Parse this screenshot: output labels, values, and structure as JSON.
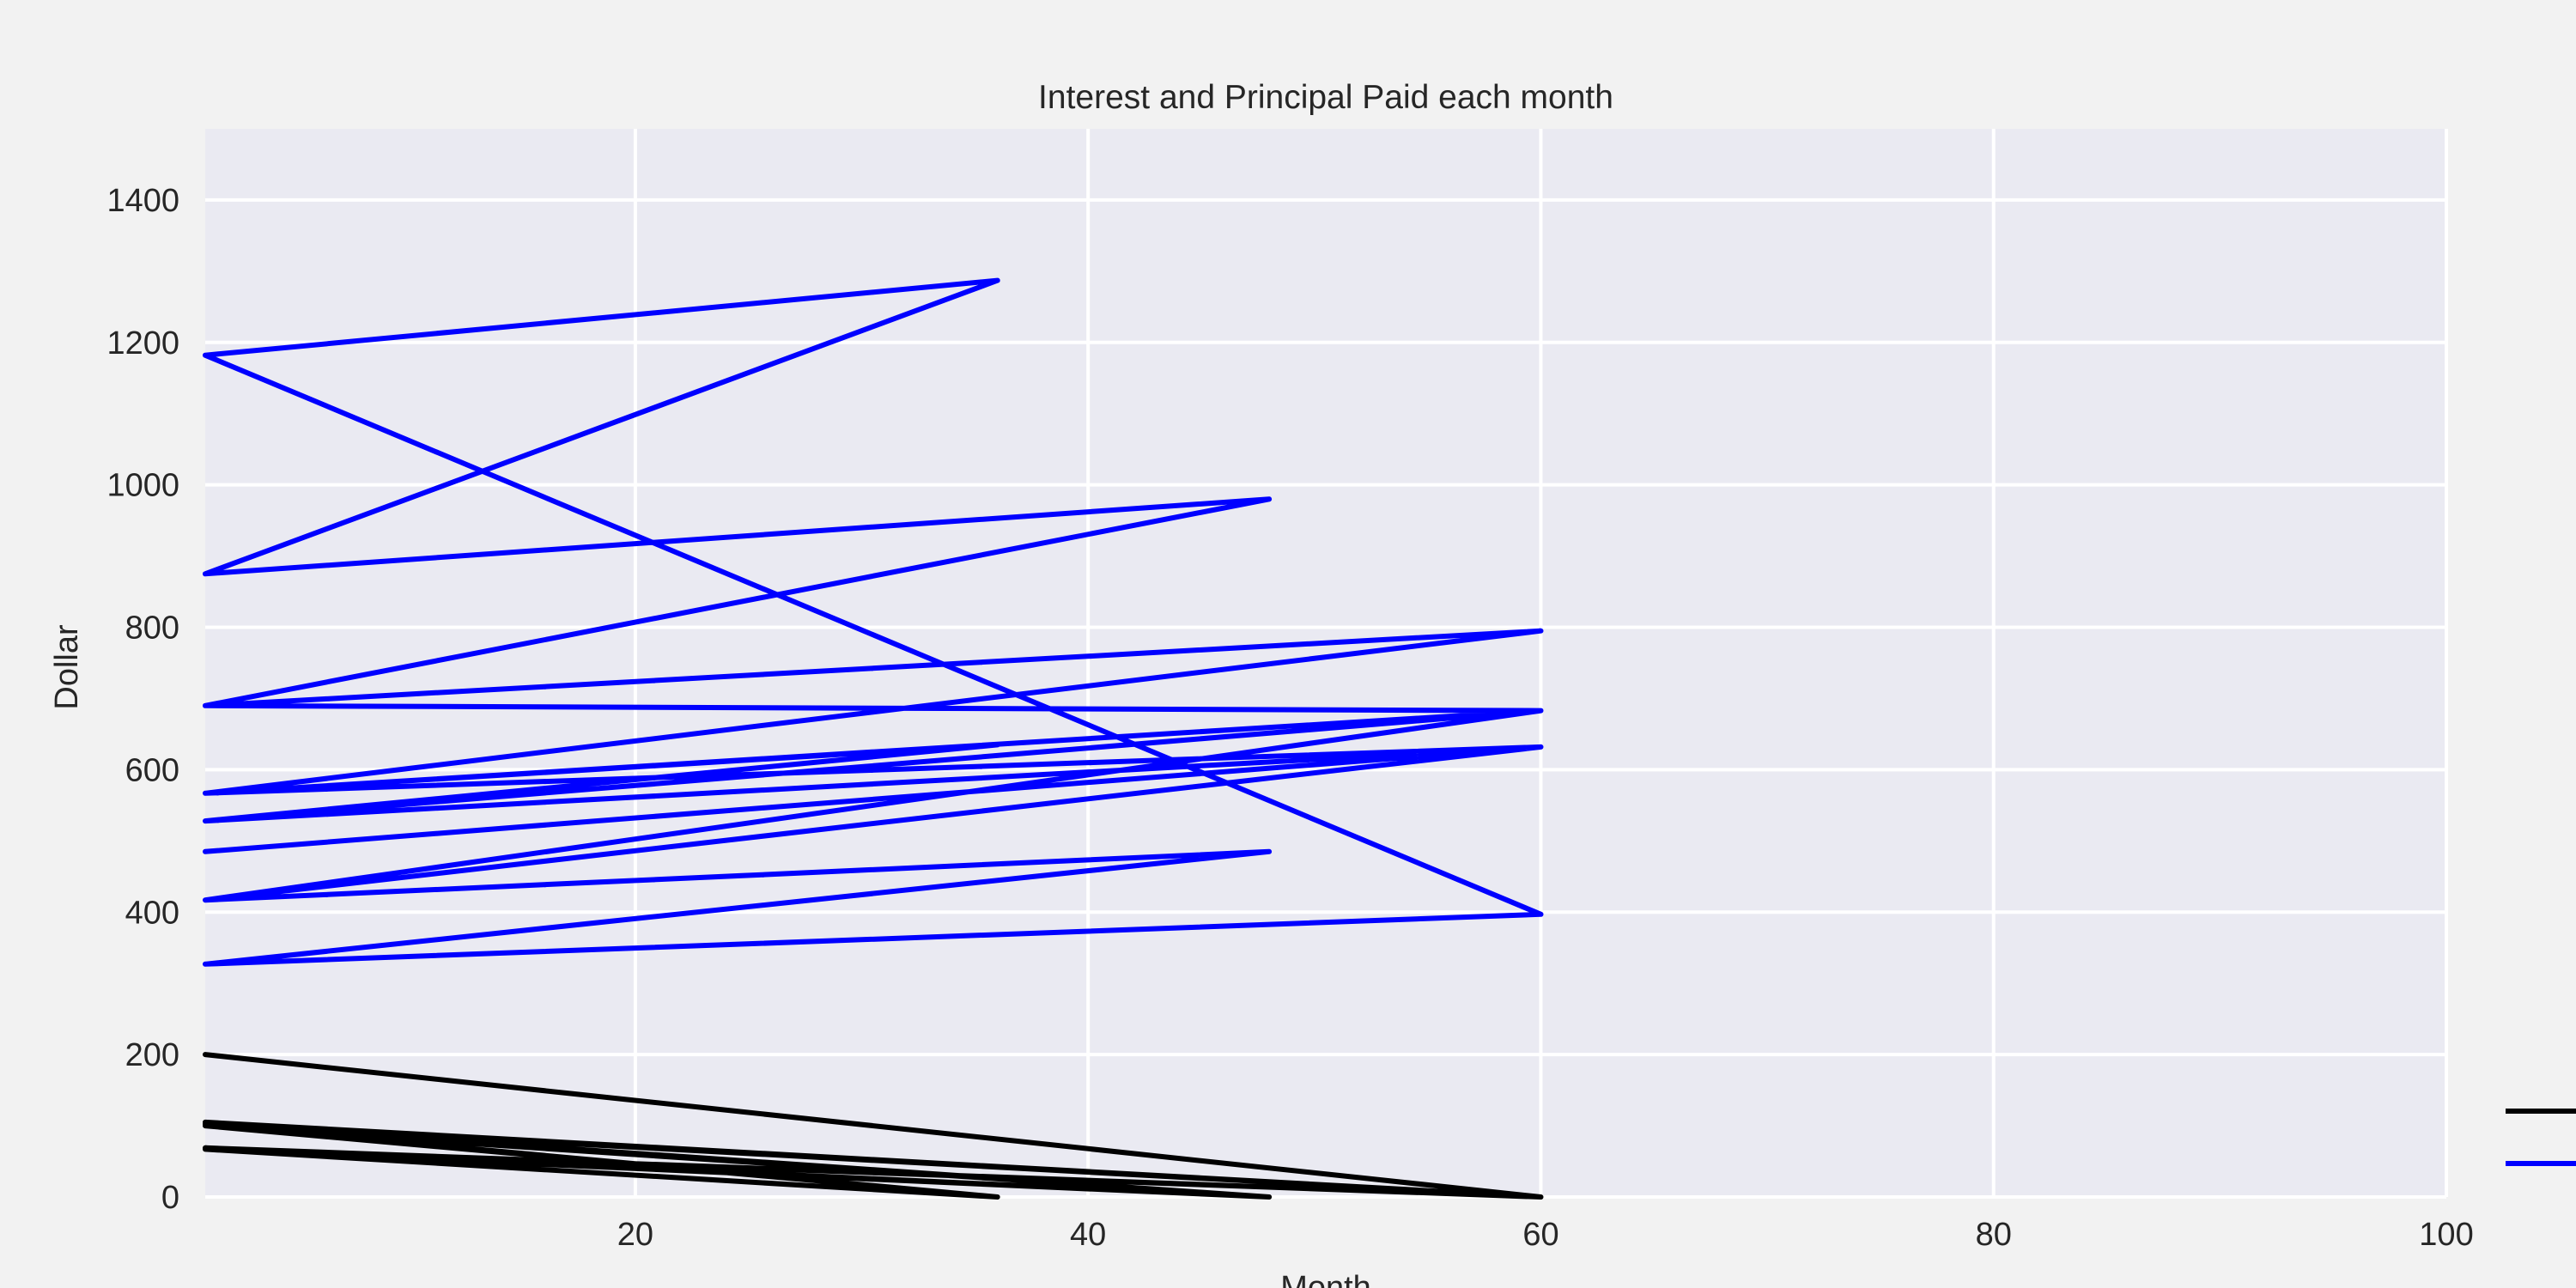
{
  "chart_data": {
    "type": "line",
    "title": "Interest and Principal Paid each month",
    "xlabel": "Month",
    "ylabel": "Dollar",
    "xlim": [
      1,
      100
    ],
    "ylim": [
      0,
      1500
    ],
    "xticks": [
      20,
      40,
      60,
      80,
      100
    ],
    "yticks": [
      0,
      200,
      400,
      600,
      800,
      1000,
      1200,
      1400
    ],
    "grid": true,
    "legend_placement": "bottom-right (clipped, labels not visible)",
    "colors": {
      "figure_background": "#f2f2f2",
      "plot_background": "#eaeaf2",
      "grid": "#ffffff",
      "text": "#262626"
    },
    "series": [
      {
        "color": "#000000",
        "points": [
          [
            1,
            200
          ],
          [
            60,
            0
          ],
          [
            1,
            105
          ],
          [
            60,
            0
          ],
          [
            1,
            103
          ],
          [
            48,
            0
          ],
          [
            1,
            102
          ],
          [
            36,
            0
          ],
          [
            1,
            100
          ],
          [
            48,
            0
          ],
          [
            1,
            69
          ],
          [
            60,
            0
          ],
          [
            1,
            68
          ],
          [
            48,
            0
          ],
          [
            1,
            67
          ],
          [
            36,
            0
          ]
        ]
      },
      {
        "color": "#0000ff",
        "points": [
          [
            1,
            327
          ],
          [
            60,
            397
          ],
          [
            1,
            1182
          ],
          [
            36,
            1287
          ],
          [
            1,
            875
          ],
          [
            48,
            980
          ],
          [
            1,
            690
          ],
          [
            60,
            795
          ],
          [
            1,
            567
          ],
          [
            36,
            635
          ],
          [
            1,
            528
          ],
          [
            60,
            683
          ],
          [
            1,
            417
          ],
          [
            48,
            485
          ],
          [
            1,
            327
          ],
          [
            48,
            485
          ],
          [
            1,
            417
          ],
          [
            60,
            632
          ],
          [
            1,
            485
          ],
          [
            60,
            632
          ],
          [
            1,
            528
          ],
          [
            60,
            632
          ],
          [
            1,
            567
          ],
          [
            60,
            683
          ],
          [
            1,
            690
          ],
          [
            48,
            980
          ],
          [
            1,
            875
          ],
          [
            36,
            1287
          ],
          [
            1,
            1182
          ],
          [
            60,
            397
          ]
        ]
      }
    ]
  }
}
